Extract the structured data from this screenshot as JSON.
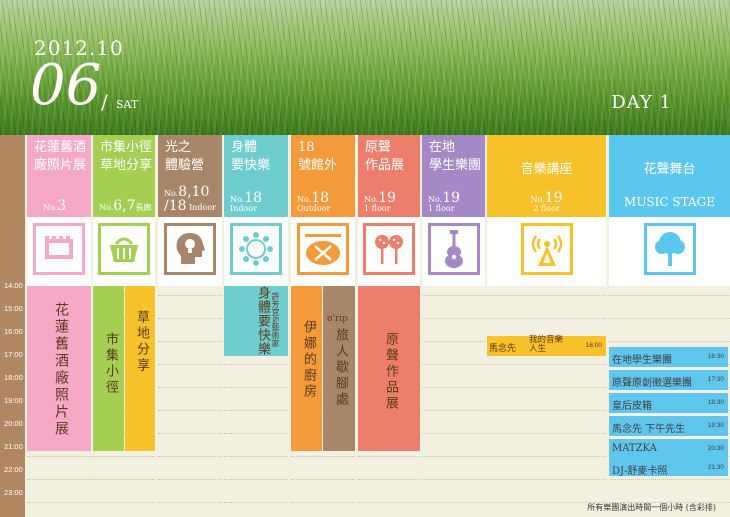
{
  "header": {
    "date": "2012.10",
    "day": "06",
    "slash": "/",
    "weekday": "SAT",
    "day_label": "DAY 1"
  },
  "colors": {
    "pink": "#f6a9c6",
    "green": "#a5cf52",
    "brown": "#a7866a",
    "teal": "#6fcdcf",
    "orange": "#f39a3a",
    "salmon": "#ec7e6b",
    "purple": "#a588c6",
    "yellow": "#f7c12a",
    "sky": "#5bc6ee",
    "rail": "#b08760"
  },
  "times": [
    "14:00",
    "15:00",
    "16:00",
    "17:00",
    "18:00",
    "19:00",
    "20:00",
    "21:00",
    "22:00",
    "23:00"
  ],
  "columns": [
    {
      "title": "花蓮舊酒\n廠照片展",
      "no_prefix": "No.",
      "no": "3",
      "no_suffix": "",
      "icon": "film-icon"
    },
    {
      "title": "市集小徑\n草地分享",
      "no_prefix": "No.",
      "no": "6,7",
      "no_suffix": "長廊",
      "icon": "basket-icon"
    },
    {
      "title": "光之\n體驗營",
      "no_prefix": "No.",
      "no": "8,10\n/18",
      "no_suffix": "Indoor",
      "icon": "head-bulb-icon"
    },
    {
      "title": "身體\n要快樂",
      "no_prefix": "No.",
      "no": "18",
      "no_suffix": "Indoor",
      "icon": "people-circle-icon"
    },
    {
      "title": "18\n號館外",
      "no_prefix": "No.",
      "no": "18",
      "no_suffix": "Outdoor",
      "icon": "plate-cutlery-icon"
    },
    {
      "title": "原聲\n作品展",
      "no_prefix": "No.",
      "no": "19",
      "no_suffix": "1 floor",
      "icon": "maracas-icon"
    },
    {
      "title": "在地\n學生樂團",
      "no_prefix": "No.",
      "no": "19",
      "no_suffix": "1 floor",
      "icon": "ukulele-icon"
    },
    {
      "title": "音樂講座",
      "no_prefix": "No.",
      "no": "19",
      "no_suffix": "2 floor",
      "icon": "antenna-icon"
    },
    {
      "title": "花聲舞台",
      "subtitle": "MUSIC STAGE",
      "icon": "tree-icon"
    }
  ],
  "events": {
    "photo_exhibit": "花蓮舊酒廠照片展",
    "market_path": "市集小徑",
    "lawn_share": "草地分享",
    "body_happy": "身體要快樂",
    "body_happy_sub": "許芳宜&藝術家",
    "ina_kitchen": "伊娜的廚房",
    "orip": "o'rip",
    "orip_sub": "旅人歇腳處",
    "sound_exhibit": "原聲作品展",
    "lecture_name": "馬念先",
    "lecture_title": "我的音樂人生",
    "lecture_time": "16:00"
  },
  "stage": [
    {
      "name": "在地學生樂團",
      "time": "16:30"
    },
    {
      "name": "原聲原創徵選樂團",
      "time": "17:30"
    },
    {
      "name": "皇后皮箱",
      "time": "18:30"
    },
    {
      "name": "馬念先 下午先生",
      "time": "19:30"
    },
    {
      "name": "MATZKA",
      "time": "20:30"
    },
    {
      "name": "DJ-舒麥卡照",
      "time": "21:30"
    }
  ],
  "footer": "所有樂團演出時間一個小時 (含彩排)"
}
